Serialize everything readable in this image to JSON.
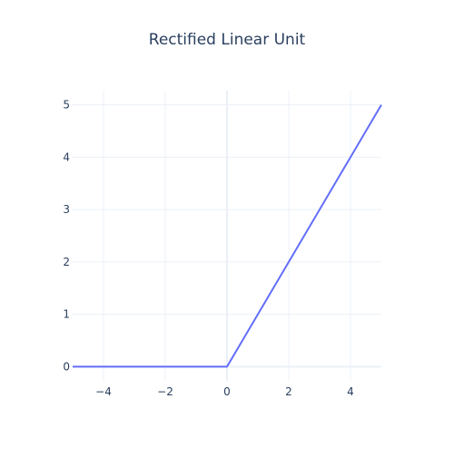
{
  "chart_data": {
    "type": "line",
    "title": "Rectified Linear Unit",
    "xlabel": "",
    "ylabel": "",
    "xlim": [
      -5,
      5
    ],
    "ylim": [
      -0.27,
      5.27
    ],
    "x_ticks": [
      -4,
      -2,
      0,
      2,
      4
    ],
    "x_tick_labels": [
      "−4",
      "−2",
      "0",
      "2",
      "4"
    ],
    "y_ticks": [
      0,
      1,
      2,
      3,
      4,
      5
    ],
    "y_tick_labels": [
      "0",
      "1",
      "2",
      "3",
      "4",
      "5"
    ],
    "grid": true,
    "legend": "none",
    "series": [
      {
        "color": "#636efa",
        "x": [
          -5,
          -4,
          -3,
          -2,
          -1,
          0,
          1,
          2,
          3,
          4,
          5
        ],
        "y": [
          0,
          0,
          0,
          0,
          0,
          0,
          1,
          2,
          3,
          4,
          5
        ]
      }
    ]
  }
}
